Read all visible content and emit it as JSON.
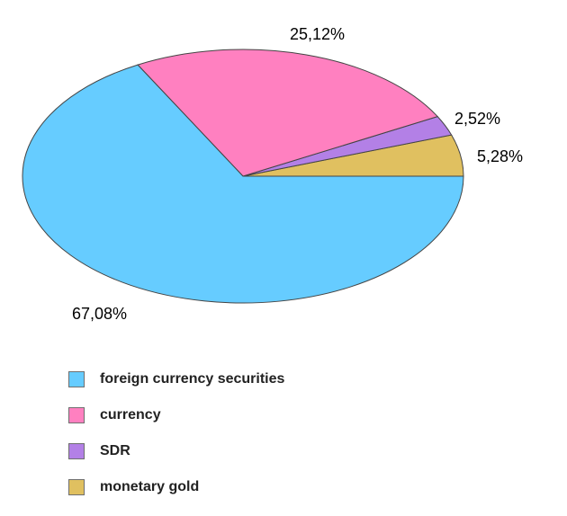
{
  "chart_data": {
    "type": "pie",
    "title": "",
    "slices": [
      {
        "label": "foreign currency securities",
        "value": 67.08,
        "value_label": "67,08%",
        "color": "#66ccff"
      },
      {
        "label": "currency",
        "value": 25.12,
        "value_label": "25,12%",
        "color": "#ff80c0"
      },
      {
        "label": "SDR",
        "value": 2.52,
        "value_label": "2,52%",
        "color": "#b380e6"
      },
      {
        "label": "monetary gold",
        "value": 5.28,
        "value_label": "5,28%",
        "color": "#e0c060"
      }
    ],
    "legend_position": "bottom-left",
    "style": "3d-tilted-ellipse"
  }
}
